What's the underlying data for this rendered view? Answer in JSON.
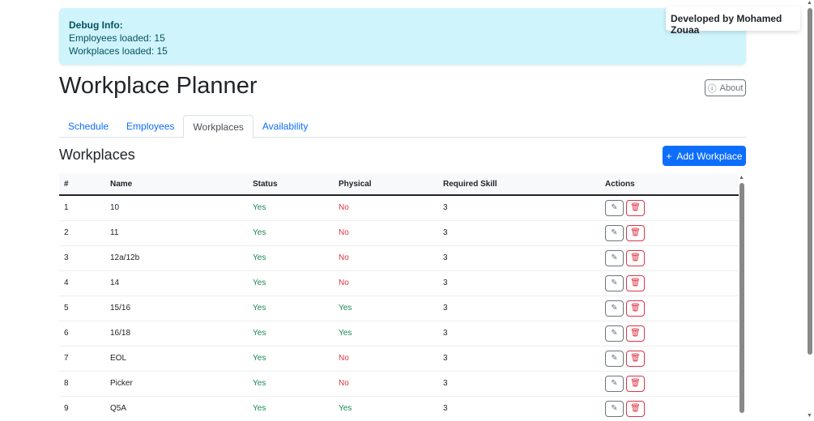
{
  "debug": {
    "title": "Debug Info:",
    "employees": "Employees loaded: 15",
    "workplaces": "Workplaces loaded: 15"
  },
  "developer": "Developed by Mohamed Zouaa",
  "title": "Workplace Planner",
  "about": "About",
  "tabs": [
    {
      "label": "Schedule"
    },
    {
      "label": "Employees"
    },
    {
      "label": "Workplaces",
      "active": true
    },
    {
      "label": "Availability"
    }
  ],
  "section_title": "Workplaces",
  "add_button": "Add Workplace",
  "columns": [
    "#",
    "Name",
    "Status",
    "Physical",
    "Required Skill",
    "Actions"
  ],
  "rows": [
    [
      "1",
      "10",
      "Yes",
      "No",
      "3"
    ],
    [
      "2",
      "11",
      "Yes",
      "No",
      "3"
    ],
    [
      "3",
      "12a/12b",
      "Yes",
      "No",
      "3"
    ],
    [
      "4",
      "14",
      "Yes",
      "No",
      "3"
    ],
    [
      "5",
      "15/16",
      "Yes",
      "Yes",
      "3"
    ],
    [
      "6",
      "16/18",
      "Yes",
      "Yes",
      "3"
    ],
    [
      "7",
      "EOL",
      "Yes",
      "No",
      "3"
    ],
    [
      "8",
      "Picker",
      "Yes",
      "No",
      "3"
    ],
    [
      "9",
      "Q5A",
      "Yes",
      "Yes",
      "3"
    ]
  ],
  "colors": {
    "primary": "#0d6efd",
    "success": "#198754",
    "danger": "#dc3545",
    "info_bg": "#cff4fc"
  }
}
